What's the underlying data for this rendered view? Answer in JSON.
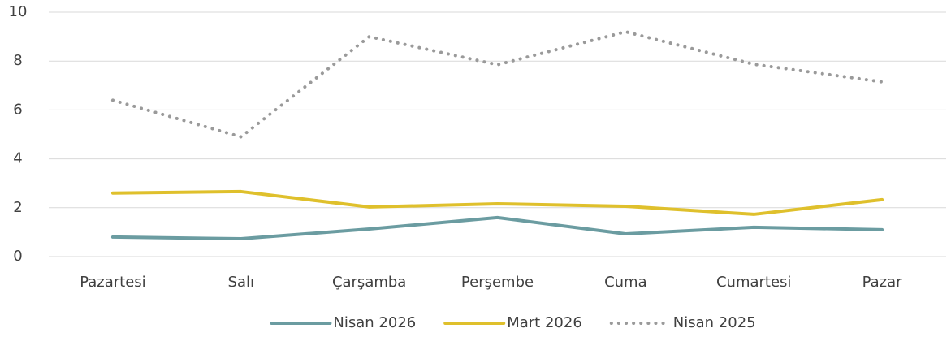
{
  "chart_data": {
    "type": "line",
    "categories": [
      "Pazartesi",
      "Salı",
      "Çarşamba",
      "Perşembe",
      "Cuma",
      "Cumartesi",
      "Pazar"
    ],
    "series": [
      {
        "name": "Nisan 2026",
        "color": "#6b9ca1",
        "style": "solid",
        "values": [
          0.8,
          0.73,
          1.13,
          1.6,
          0.93,
          1.2,
          1.1
        ]
      },
      {
        "name": "Mart 2026",
        "color": "#dfc02c",
        "style": "solid",
        "values": [
          2.6,
          2.66,
          2.03,
          2.16,
          2.06,
          1.73,
          2.33
        ]
      },
      {
        "name": "Nisan 2025",
        "color": "#9a9a9a",
        "style": "dotted",
        "values": [
          6.4,
          4.9,
          9.0,
          7.85,
          9.2,
          7.87,
          7.15
        ]
      }
    ],
    "ylim": [
      0,
      10
    ],
    "yticks": [
      0,
      2,
      4,
      6,
      8,
      10
    ],
    "grid": true,
    "legend": "bottom"
  }
}
